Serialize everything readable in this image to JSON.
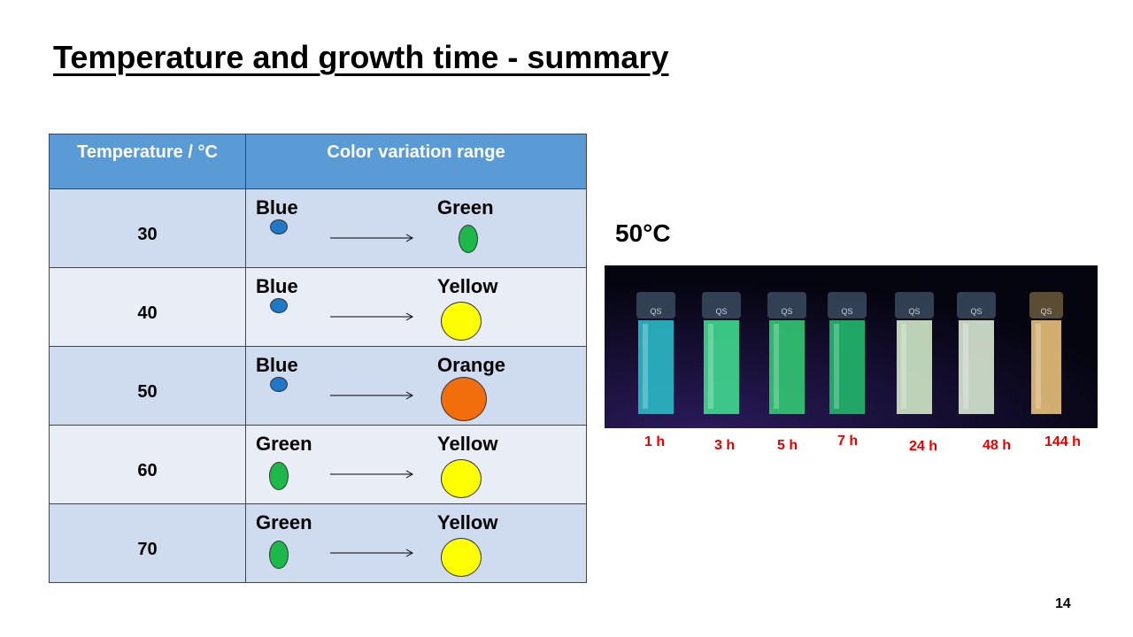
{
  "slide": {
    "title": "Temperature and growth time - summary",
    "page_number": "14"
  },
  "table": {
    "headers": [
      "Temperature / °C",
      "Color variation range"
    ],
    "rows": [
      {
        "temperature": "30",
        "from": "Blue",
        "to": "Green",
        "from_color": "#1f78c8",
        "to_color": "#1db84a"
      },
      {
        "temperature": "40",
        "from": "Blue",
        "to": "Yellow",
        "from_color": "#1f78c8",
        "to_color": "#ffff00"
      },
      {
        "temperature": "50",
        "from": "Blue",
        "to": "Orange",
        "from_color": "#1f78c8",
        "to_color": "#f26d0c"
      },
      {
        "temperature": "60",
        "from": "Green",
        "to": "Yellow",
        "from_color": "#1db84a",
        "to_color": "#ffff00"
      },
      {
        "temperature": "70",
        "from": "Green",
        "to": "Yellow",
        "from_color": "#1db84a",
        "to_color": "#ffff00"
      }
    ]
  },
  "photo": {
    "heading": "50°C",
    "cuvette_label": "QS",
    "cuvettes": [
      {
        "time": "1 h",
        "fluid_color": "#2bb9c8"
      },
      {
        "time": "3 h",
        "fluid_color": "#40d98f"
      },
      {
        "time": "5 h",
        "fluid_color": "#33c873"
      },
      {
        "time": "7 h",
        "fluid_color": "#22b76d"
      },
      {
        "time": "24 h",
        "fluid_color": "#cfe8c8"
      },
      {
        "time": "48 h",
        "fluid_color": "#d8e8d4"
      },
      {
        "time": "144 h",
        "fluid_color": "#e8c07a"
      }
    ]
  },
  "colors": {
    "header_bg": "#5b9bd5",
    "row_dark": "#cfdbee",
    "row_light": "#e8edf6",
    "time_label": "#e60000"
  }
}
